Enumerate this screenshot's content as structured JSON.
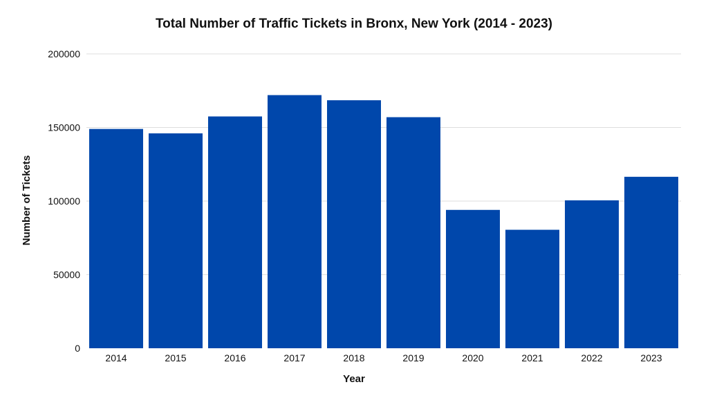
{
  "chart_data": {
    "type": "bar",
    "title": "Total Number of Traffic Tickets in Bronx, New York (2014 - 2023)",
    "xlabel": "Year",
    "ylabel": "Number of Tickets",
    "categories": [
      "2014",
      "2015",
      "2016",
      "2017",
      "2018",
      "2019",
      "2020",
      "2021",
      "2022",
      "2023"
    ],
    "values": [
      149000,
      146000,
      157500,
      172000,
      168500,
      157000,
      94000,
      80500,
      100500,
      116500
    ],
    "ylim": [
      0,
      200000
    ],
    "yticks": [
      0,
      50000,
      100000,
      150000,
      200000
    ],
    "grid": true,
    "legend": "none",
    "bar_color": "#0047AB",
    "grid_color": "#dddddd"
  }
}
